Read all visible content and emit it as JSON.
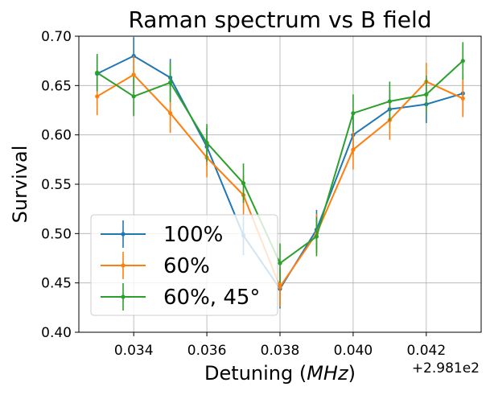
{
  "chart_data": {
    "type": "line",
    "title": "Raman spectrum vs B field",
    "xlabel": "Detuning ($MHz$)",
    "ylabel": "Survival",
    "x_offset_label": "+2.981e2",
    "xlim": [
      0.0325,
      0.0435
    ],
    "ylim": [
      0.4,
      0.7
    ],
    "x_ticks": [
      0.034,
      0.036,
      0.038,
      0.04,
      0.042
    ],
    "x_tick_labels": [
      "0.034",
      "0.036",
      "0.038",
      "0.040",
      "0.042"
    ],
    "y_ticks": [
      0.4,
      0.45,
      0.5,
      0.55,
      0.6,
      0.65,
      0.7
    ],
    "y_tick_labels": [
      "0.40",
      "0.45",
      "0.50",
      "0.55",
      "0.60",
      "0.65",
      "0.70"
    ],
    "grid": true,
    "legend_position": "lower-left",
    "x": [
      0.033,
      0.034,
      0.035,
      0.036,
      0.037,
      0.038,
      0.039,
      0.04,
      0.041,
      0.042,
      0.043
    ],
    "series": [
      {
        "name": "100%",
        "color": "#1f77b4",
        "values": [
          0.662,
          0.68,
          0.658,
          0.588,
          0.498,
          0.444,
          0.504,
          0.6,
          0.626,
          0.631,
          0.642
        ],
        "errors": [
          0.018,
          0.019,
          0.019,
          0.019,
          0.02,
          0.02,
          0.02,
          0.02,
          0.019,
          0.019,
          0.019
        ]
      },
      {
        "name": "60%",
        "color": "#ff7f0e",
        "values": [
          0.639,
          0.661,
          0.622,
          0.577,
          0.539,
          0.446,
          0.5,
          0.585,
          0.615,
          0.654,
          0.637
        ],
        "errors": [
          0.019,
          0.019,
          0.02,
          0.02,
          0.02,
          0.02,
          0.02,
          0.02,
          0.02,
          0.019,
          0.019
        ]
      },
      {
        "name": "60%, 45$^\\circ$",
        "display_name": "60%, 45°",
        "color": "#2ca02c",
        "values": [
          0.663,
          0.639,
          0.653,
          0.592,
          0.551,
          0.47,
          0.497,
          0.622,
          0.634,
          0.641,
          0.675
        ],
        "errors": [
          0.019,
          0.02,
          0.02,
          0.019,
          0.02,
          0.02,
          0.02,
          0.019,
          0.02,
          0.019,
          0.019
        ]
      }
    ]
  }
}
